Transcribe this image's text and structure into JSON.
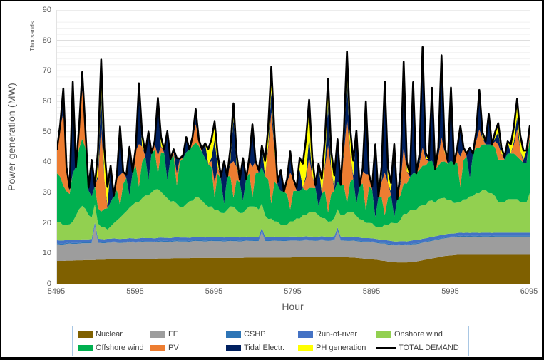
{
  "y_axis": {
    "title": "Power generation (MW)",
    "unit_label": "Thousands",
    "min": 0,
    "max": 90,
    "major_step": 10,
    "minor_step": 2,
    "tick_labels": [
      0,
      10,
      20,
      30,
      40,
      50,
      60,
      70,
      80,
      90
    ]
  },
  "x_axis": {
    "title": "Hour",
    "min": 5495,
    "max": 6095,
    "tick_labels": [
      5495,
      5595,
      5695,
      5795,
      5895,
      5995,
      6095
    ]
  },
  "legend": [
    {
      "slug": "nuclear",
      "label": "Nuclear",
      "color": "#7F6000",
      "type": "area"
    },
    {
      "slug": "ff",
      "label": "FF",
      "color": "#9D9D9D",
      "type": "area"
    },
    {
      "slug": "cshp",
      "label": "CSHP",
      "color": "#2E75B6",
      "type": "area"
    },
    {
      "slug": "run-of-river",
      "label": "Run-of-river",
      "color": "#4472C4",
      "type": "area"
    },
    {
      "slug": "onshore-wind",
      "label": "Onshore wind",
      "color": "#92D050",
      "type": "area"
    },
    {
      "slug": "offshore-wind",
      "label": "Offshore wind",
      "color": "#00B050",
      "type": "area"
    },
    {
      "slug": "pv",
      "label": "PV",
      "color": "#ED7D31",
      "type": "area"
    },
    {
      "slug": "tidal-electr",
      "label": "Tidal Electr.",
      "color": "#002060",
      "type": "area"
    },
    {
      "slug": "ph-generation",
      "label": "PH generation",
      "color": "#FFFF00",
      "type": "area"
    },
    {
      "slug": "total-demand",
      "label": "TOTAL DEMAND",
      "color": "#000000",
      "type": "line"
    }
  ],
  "chart_data": {
    "type": "area",
    "stacked": true,
    "title": "",
    "xlabel": "Hour",
    "ylabel": "Power generation (MW)",
    "y_unit_note": "axis values are Thousands of MW",
    "xlim": [
      5495,
      6095
    ],
    "ylim": [
      0,
      90
    ],
    "grid": "horizontal major every 10, minor every 2",
    "legend_position": "bottom",
    "x_start": 5495,
    "x_step": 4,
    "n_points": 151,
    "series": [
      {
        "name": "Nuclear",
        "slug": "nuclear",
        "color": "#7F6000",
        "values": [
          7.5,
          7.5,
          7.5,
          7.6,
          7.6,
          7.6,
          7.7,
          7.7,
          7.7,
          7.8,
          7.8,
          7.8,
          7.8,
          7.9,
          7.9,
          7.9,
          8,
          8,
          8,
          8,
          8,
          8,
          8,
          8.1,
          8.1,
          8.1,
          8.1,
          8.2,
          8.2,
          8.2,
          8.2,
          8.2,
          8.3,
          8.3,
          8.3,
          8.3,
          8.3,
          8.4,
          8.4,
          8.4,
          8.4,
          8.4,
          8.4,
          8.5,
          8.5,
          8.5,
          8.5,
          8.5,
          8.5,
          8.5,
          8.5,
          8.5,
          8.5,
          8.5,
          8.5,
          8.5,
          8.5,
          8.5,
          8.5,
          8.5,
          8.6,
          8.6,
          8.6,
          8.6,
          8.6,
          8.6,
          8.6,
          8.6,
          8.6,
          8.6,
          8.6,
          8.6,
          8.6,
          8.6,
          8.6,
          8.7,
          8.7,
          8.7,
          8.7,
          8.7,
          8.7,
          8.7,
          8.7,
          8.7,
          8.7,
          8.7,
          8.7,
          8.7,
          8.7,
          8.7,
          8.7,
          8.7,
          8.7,
          8.6,
          8.6,
          8.5,
          8.4,
          8.3,
          8.2,
          8.1,
          8,
          7.9,
          7.8,
          7.6,
          7.5,
          7.3,
          7.2,
          7.1,
          7,
          7,
          7,
          7,
          7.1,
          7.2,
          7.3,
          7.5,
          7.7,
          7.9,
          8.1,
          8.3,
          8.5,
          8.7,
          8.9,
          9.1,
          9.2,
          9.3,
          9.4,
          9.5,
          9.5,
          9.5,
          9.5,
          9.5,
          9.5,
          9.5,
          9.5,
          9.5,
          9.5,
          9.5,
          9.5,
          9.5,
          9.5,
          9.5,
          9.5,
          9.5,
          9.5,
          9.5,
          9.5,
          9.5,
          9.5,
          9.5,
          9.5
        ]
      },
      {
        "name": "FF",
        "slug": "ff",
        "color": "#9D9D9D",
        "values": [
          5.5,
          5.4,
          5.4,
          5.5,
          5.6,
          5.5,
          5.4,
          5.5,
          5.6,
          5.5,
          5.5,
          5.6,
          11,
          5.6,
          5.5,
          5.4,
          5.5,
          5.5,
          5.6,
          5.5,
          5.4,
          5.5,
          5.5,
          5.6,
          5.5,
          5.4,
          5.5,
          5.6,
          5.5,
          5.5,
          5.5,
          5.4,
          5.5,
          5.6,
          5.5,
          5.5,
          5.4,
          5.5,
          5.6,
          5.5,
          5.5,
          5.5,
          5.4,
          5.5,
          5.6,
          5.5,
          5.5,
          5.4,
          5.5,
          5.6,
          5.5,
          5.5,
          5.5,
          5.4,
          5.5,
          5.6,
          5.5,
          5.5,
          5.4,
          5.5,
          5.6,
          5.5,
          5.5,
          5.4,
          5.5,
          8.5,
          5.5,
          5.4,
          5.5,
          5.6,
          5.5,
          5.5,
          5.4,
          5.5,
          5.6,
          5.5,
          5.5,
          5.4,
          5.5,
          5.6,
          5.5,
          5.5,
          5.4,
          5.5,
          5.6,
          5.5,
          5.4,
          5.5,
          5.6,
          8.5,
          5.5,
          5.5,
          5.4,
          5.5,
          5.6,
          5.5,
          5.5,
          5.4,
          5.5,
          5.6,
          5.6,
          5.6,
          5.5,
          5.6,
          5.7,
          5.6,
          5.6,
          5.5,
          5.6,
          5.7,
          5.7,
          5.6,
          5.7,
          5.8,
          5.7,
          5.7,
          5.8,
          5.7,
          5.8,
          5.8,
          5.8,
          5.8,
          5.9,
          5.8,
          5.9,
          5.9,
          5.8,
          5.9,
          6,
          5.9,
          6,
          5.9,
          6,
          6,
          5.9,
          6,
          6,
          6,
          5.9,
          6,
          6,
          6,
          6,
          6,
          6,
          6,
          6,
          6,
          6,
          6,
          6
        ]
      },
      {
        "name": "CSHP",
        "slug": "cshp",
        "color": "#2E75B6",
        "values": 0.3
      },
      {
        "name": "Run-of-river",
        "slug": "run-of-river",
        "color": "#4472C4",
        "values": 1
      },
      {
        "name": "Onshore wind",
        "slug": "onshore-wind",
        "color": "#92D050",
        "values": [
          6,
          6,
          5,
          5,
          5,
          6,
          8,
          10,
          11,
          10,
          8,
          7,
          6,
          5,
          4,
          4,
          3,
          4,
          5,
          6,
          7,
          8,
          9,
          10,
          11,
          12,
          12,
          13,
          14,
          14,
          15,
          16,
          16,
          15,
          14,
          13,
          12,
          12,
          11,
          10,
          10,
          11,
          12,
          12,
          13,
          13,
          12,
          11,
          10,
          10,
          9,
          9,
          8,
          8,
          9,
          10,
          10,
          9,
          8,
          8,
          9,
          10,
          10,
          10,
          9,
          8,
          7,
          6,
          6,
          5,
          5,
          4,
          4,
          4,
          5,
          5,
          6,
          6,
          7,
          7,
          8,
          8,
          8,
          7,
          6,
          6,
          5,
          5,
          6,
          6,
          7,
          7,
          8,
          8,
          8,
          7,
          6,
          6,
          5,
          5,
          5,
          4,
          4,
          4,
          5,
          5,
          6,
          6,
          6,
          7,
          9,
          9,
          10,
          10,
          10,
          11,
          11,
          11,
          12,
          12,
          11,
          12,
          12,
          12,
          11,
          11,
          10,
          10,
          10,
          11,
          11,
          12,
          12,
          13,
          13,
          14,
          14,
          13,
          13,
          12,
          10,
          10,
          10,
          11,
          11,
          11,
          11,
          10,
          10,
          10,
          13
        ]
      },
      {
        "name": "Offshore wind",
        "slug": "offshore-wind",
        "color": "#00B050",
        "values": [
          16,
          15,
          13,
          11,
          10,
          16,
          16,
          20,
          22,
          20,
          8,
          7,
          6,
          5,
          5,
          6,
          7,
          8,
          9,
          10,
          4,
          10,
          11,
          4,
          11,
          12,
          5,
          12,
          13,
          5,
          13,
          13,
          5,
          13,
          14,
          6,
          14,
          15,
          6,
          15,
          16,
          17,
          17,
          18,
          18,
          17,
          16,
          15,
          14,
          13,
          4,
          12,
          11,
          3,
          11,
          10,
          3,
          10,
          10,
          4,
          10,
          11,
          3,
          11,
          12,
          12,
          13,
          13,
          5,
          13,
          12,
          11,
          11,
          10,
          4,
          10,
          9,
          9,
          9,
          8,
          8,
          8,
          8,
          3,
          8,
          9,
          3,
          9,
          9,
          9,
          10,
          10,
          3,
          10,
          11,
          4,
          11,
          12,
          4,
          12,
          11,
          3,
          10,
          10,
          3,
          9,
          9,
          2,
          8,
          8,
          10,
          10,
          11,
          12,
          12,
          12,
          13,
          13,
          13,
          13,
          11,
          11,
          12,
          12,
          12,
          13,
          13,
          13,
          5,
          13,
          14,
          6,
          14,
          15,
          15,
          15,
          15,
          16,
          16,
          16,
          14,
          14,
          14,
          15,
          15,
          15,
          14,
          14,
          13,
          13,
          18
        ]
      },
      {
        "name": "PV",
        "slug": "pv",
        "color": "#ED7D31",
        "values": [
          8,
          16,
          24,
          8,
          1,
          0,
          0,
          6,
          16,
          6,
          0,
          0,
          0,
          10,
          28,
          10,
          0,
          0,
          0,
          4,
          10,
          4,
          0,
          0,
          0,
          5,
          14,
          5,
          0,
          0,
          0,
          2,
          6,
          2,
          0,
          0,
          0,
          1,
          4,
          1,
          0,
          0,
          0,
          2,
          6,
          2,
          0,
          0,
          0,
          2,
          5,
          2,
          0,
          0,
          0,
          4,
          12,
          4,
          0,
          0,
          0,
          4,
          10,
          4,
          0,
          0,
          0,
          10,
          30,
          10,
          0,
          0,
          0,
          4,
          12,
          4,
          0,
          0,
          0,
          4,
          10,
          4,
          0,
          0,
          0,
          8,
          22,
          8,
          0,
          0,
          0,
          10,
          28,
          10,
          0,
          0,
          0,
          4,
          12,
          4,
          0,
          0,
          0,
          5,
          14,
          5,
          0,
          0,
          0,
          4,
          12,
          4,
          0,
          0,
          0,
          2,
          6,
          2,
          0,
          0,
          0,
          3,
          8,
          3,
          0,
          0,
          0,
          4,
          10,
          4,
          0,
          0,
          0,
          2,
          6,
          2,
          0,
          0,
          0,
          2,
          5,
          2,
          0,
          0,
          0,
          3,
          9,
          3,
          0,
          0,
          2
        ]
      },
      {
        "name": "Tidal Electr.",
        "slug": "tidal-electr",
        "color": "#002060",
        "values": [
          0,
          1,
          8,
          0,
          1,
          30,
          0,
          1,
          6,
          0,
          1,
          12,
          0,
          1,
          12,
          0,
          1,
          12,
          0,
          1,
          16,
          0,
          1,
          16,
          0,
          1,
          16,
          0,
          1,
          16,
          0,
          1,
          16,
          0,
          1,
          16,
          0,
          1,
          5,
          0,
          1,
          5,
          0,
          1,
          5,
          0,
          1,
          5,
          0,
          1,
          14,
          0,
          1,
          14,
          0,
          1,
          14,
          0,
          1,
          14,
          0,
          1,
          14,
          0,
          1,
          7,
          0,
          1,
          7,
          0,
          1,
          7,
          0,
          1,
          7,
          0,
          1,
          7,
          0,
          1,
          7,
          0,
          1,
          14,
          0,
          1,
          14,
          0,
          1,
          14,
          0,
          1,
          14,
          0,
          1,
          24,
          0,
          1,
          24,
          0,
          1,
          24,
          0,
          1,
          24,
          0,
          1,
          24,
          0,
          1,
          24,
          0,
          1,
          30,
          0,
          1,
          30,
          0,
          1,
          24,
          0,
          1,
          24,
          0,
          1,
          24,
          0,
          1,
          10,
          0,
          1,
          10,
          0,
          1,
          10,
          0,
          1,
          10,
          0,
          1,
          4,
          0,
          1,
          4,
          0,
          1,
          4,
          0,
          1,
          4,
          0
        ]
      },
      {
        "name": "PH generation",
        "slug": "ph-generation",
        "color": "#FFFF00",
        "values": [
          0,
          0,
          0,
          0,
          0,
          0,
          0,
          0,
          0,
          0,
          0,
          0,
          0,
          8,
          10,
          10,
          6,
          0,
          0,
          0,
          0,
          0,
          0,
          0,
          0,
          0,
          4,
          4,
          0,
          0,
          0,
          0,
          3,
          3,
          0,
          0,
          0,
          0,
          0,
          0,
          0,
          0,
          0,
          0,
          0,
          0,
          0,
          0,
          5,
          6,
          6,
          4,
          0,
          0,
          0,
          4,
          5,
          4,
          0,
          0,
          0,
          0,
          0,
          0,
          0,
          0,
          5,
          6,
          8,
          6,
          0,
          0,
          0,
          0,
          0,
          0,
          0,
          4,
          8,
          12,
          12,
          6,
          0,
          0,
          5,
          8,
          8,
          6,
          4,
          0,
          0,
          6,
          8,
          8,
          5,
          0,
          0,
          0,
          0,
          0,
          0,
          0,
          0,
          4,
          6,
          5,
          3,
          0,
          0,
          3,
          4,
          3,
          0,
          0,
          0,
          2,
          3,
          2,
          0,
          0,
          0,
          2,
          3,
          2,
          0,
          0,
          0,
          0,
          0,
          0,
          0,
          0,
          0,
          2,
          3,
          2,
          0,
          0,
          0,
          2,
          3,
          2,
          0,
          0,
          3,
          5,
          6,
          5,
          3,
          0,
          2
        ]
      }
    ],
    "total_demand": {
      "name": "TOTAL DEMAND",
      "color": "#000000",
      "style": "line",
      "derivation": "black line rides the top of the stacked generation (equals sum of all stacked series at each hour)"
    }
  }
}
